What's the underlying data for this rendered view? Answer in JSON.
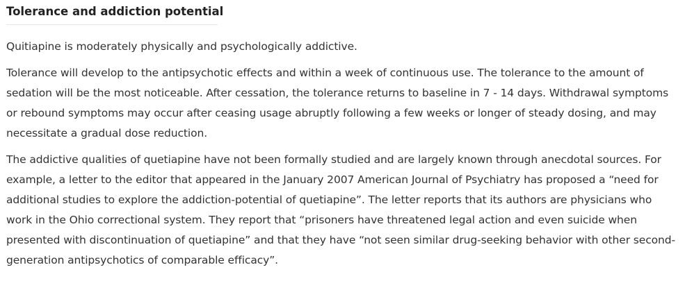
{
  "section": {
    "heading": "Tolerance and addiction potential"
  },
  "paragraphs": {
    "p1": "Quitiapine is moderately physically and psychologically addictive.",
    "p2": "Tolerance will develop to the antipsychotic effects and within a week of continuous use. The tolerance to the amount of sedation will be the most noticeable. After cessation, the tolerance returns to baseline in 7 - 14 days. Withdrawal symptoms or rebound symptoms may occur after ceasing usage abruptly following a few weeks or longer of steady dosing, and may necessitate a gradual dose reduction.",
    "p3": "The addictive qualities of quetiapine have not been formally studied and are largely known through anecdotal sources. For example, a letter to the editor that appeared in the January 2007 American Journal of Psychiatry has proposed a “need for additional studies to explore the addiction-potential of quetiapine”. The letter reports that its authors are physicians who work in the Ohio correctional system. They report that “prisoners have threatened legal action and even suicide when presented with discontinuation of quetiapine” and that they have “not seen similar drug-seeking behavior with other second-generation antipsychotics of comparable efficacy”."
  }
}
